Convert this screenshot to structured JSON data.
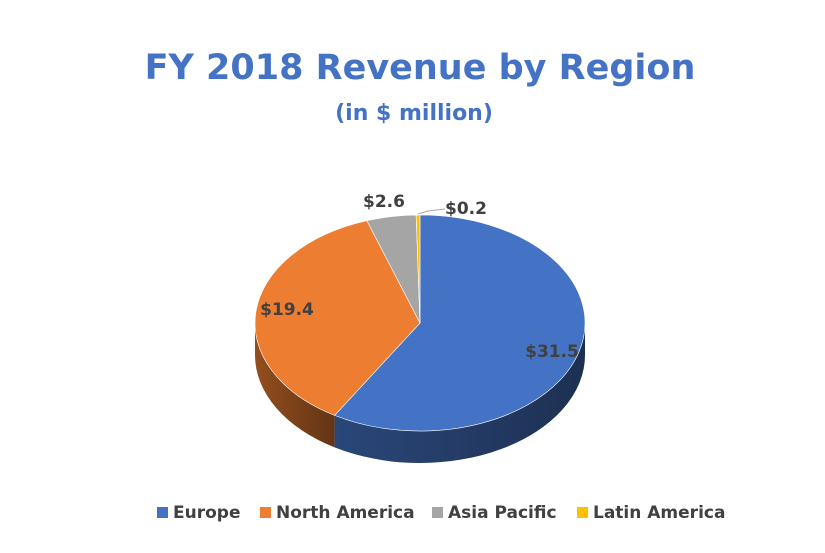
{
  "chart_data": {
    "type": "pie",
    "title": "FY 2018 Revenue by Region",
    "subtitle": "(in $ million)",
    "categories": [
      "Europe",
      "North America",
      "Asia Pacific",
      "Latin America"
    ],
    "values": [
      31.5,
      19.4,
      2.6,
      0.2
    ],
    "data_labels": [
      "$31.5",
      "$19.4",
      "$2.6",
      "$0.2"
    ],
    "colors": [
      "#4472c4",
      "#ed7d31",
      "#a5a5a5",
      "#ffc000"
    ],
    "style": "3d",
    "legend": "bottom"
  }
}
